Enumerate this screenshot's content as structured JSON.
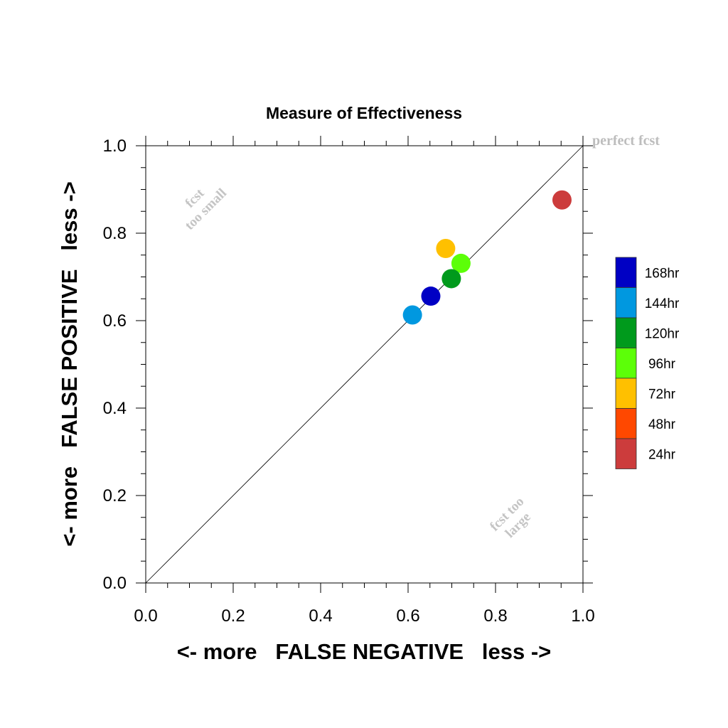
{
  "chart_data": {
    "type": "scatter",
    "title": "Measure of Effectiveness",
    "xlabel": "<- more   FALSE NEGATIVE   less ->",
    "ylabel": "<- more   FALSE POSITIVE   less ->",
    "xlim": [
      0,
      1
    ],
    "ylim": [
      0,
      1
    ],
    "xticks": [
      "0.0",
      "0.2",
      "0.4",
      "0.6",
      "0.8",
      "1.0"
    ],
    "yticks": [
      "0.0",
      "0.2",
      "0.4",
      "0.6",
      "0.8",
      "1.0"
    ],
    "grid": false,
    "reference_line": "diagonal y = x",
    "annotations": {
      "perfect": "perfect fcst",
      "too_small_1": "fcst",
      "too_small_2": "too small",
      "too_large_1": "fcst too",
      "too_large_2": "large"
    },
    "legend_placement": "right",
    "legend": [
      {
        "label": "168hr",
        "color": "#0000c4"
      },
      {
        "label": "144hr",
        "color": "#0098e0"
      },
      {
        "label": "120hr",
        "color": "#009a1c"
      },
      {
        "label": "96hr",
        "color": "#5cff08"
      },
      {
        "label": "72hr",
        "color": "#ffc000"
      },
      {
        "label": "48hr",
        "color": "#ff4800"
      },
      {
        "label": "24hr",
        "color": "#cc3c3c"
      }
    ],
    "series": [
      {
        "name": "24hr",
        "x": 0.952,
        "y": 0.876,
        "color": "#cc3c3c"
      },
      {
        "name": "72hr",
        "x": 0.686,
        "y": 0.765,
        "color": "#ffc000"
      },
      {
        "name": "96hr",
        "x": 0.721,
        "y": 0.731,
        "color": "#5cff08"
      },
      {
        "name": "120hr",
        "x": 0.699,
        "y": 0.696,
        "color": "#009a1c"
      },
      {
        "name": "168hr",
        "x": 0.652,
        "y": 0.656,
        "color": "#0000c4"
      },
      {
        "name": "144hr",
        "x": 0.61,
        "y": 0.613,
        "color": "#0098e0"
      }
    ]
  }
}
